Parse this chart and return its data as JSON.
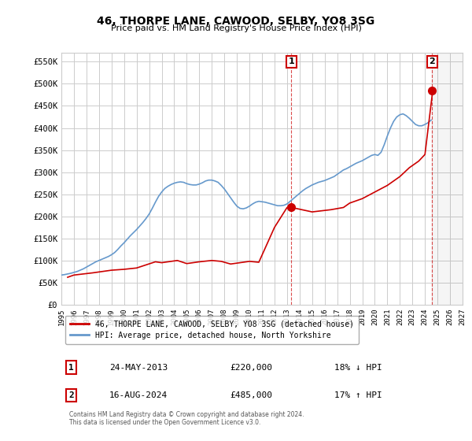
{
  "title": "46, THORPE LANE, CAWOOD, SELBY, YO8 3SG",
  "subtitle": "Price paid vs. HM Land Registry's House Price Index (HPI)",
  "ylabel_ticks": [
    "£0",
    "£50K",
    "£100K",
    "£150K",
    "£200K",
    "£250K",
    "£300K",
    "£350K",
    "£400K",
    "£450K",
    "£500K",
    "£550K"
  ],
  "ytick_values": [
    0,
    50000,
    100000,
    150000,
    200000,
    250000,
    300000,
    350000,
    400000,
    450000,
    500000,
    550000
  ],
  "ylim": [
    0,
    570000
  ],
  "background_color": "#ffffff",
  "grid_color": "#cccccc",
  "hpi_color": "#6699cc",
  "price_color": "#cc0000",
  "transaction1": {
    "date": "24-MAY-2013",
    "price": 220000,
    "label": "1",
    "hpi_diff": "18% ↓ HPI"
  },
  "transaction2": {
    "date": "16-AUG-2024",
    "price": 485000,
    "label": "2",
    "hpi_diff": "17% ↑ HPI"
  },
  "legend_property": "46, THORPE LANE, CAWOOD, SELBY, YO8 3SG (detached house)",
  "legend_hpi": "HPI: Average price, detached house, North Yorkshire",
  "footer": "Contains HM Land Registry data © Crown copyright and database right 2024.\nThis data is licensed under the Open Government Licence v3.0.",
  "hpi_data_x": [
    1995.0,
    1995.25,
    1995.5,
    1995.75,
    1996.0,
    1996.25,
    1996.5,
    1996.75,
    1997.0,
    1997.25,
    1997.5,
    1997.75,
    1998.0,
    1998.25,
    1998.5,
    1998.75,
    1999.0,
    1999.25,
    1999.5,
    1999.75,
    2000.0,
    2000.25,
    2000.5,
    2000.75,
    2001.0,
    2001.25,
    2001.5,
    2001.75,
    2002.0,
    2002.25,
    2002.5,
    2002.75,
    2003.0,
    2003.25,
    2003.5,
    2003.75,
    2004.0,
    2004.25,
    2004.5,
    2004.75,
    2005.0,
    2005.25,
    2005.5,
    2005.75,
    2006.0,
    2006.25,
    2006.5,
    2006.75,
    2007.0,
    2007.25,
    2007.5,
    2007.75,
    2008.0,
    2008.25,
    2008.5,
    2008.75,
    2009.0,
    2009.25,
    2009.5,
    2009.75,
    2010.0,
    2010.25,
    2010.5,
    2010.75,
    2011.0,
    2011.25,
    2011.5,
    2011.75,
    2012.0,
    2012.25,
    2012.5,
    2012.75,
    2013.0,
    2013.25,
    2013.5,
    2013.75,
    2014.0,
    2014.25,
    2014.5,
    2014.75,
    2015.0,
    2015.25,
    2015.5,
    2015.75,
    2016.0,
    2016.25,
    2016.5,
    2016.75,
    2017.0,
    2017.25,
    2017.5,
    2017.75,
    2018.0,
    2018.25,
    2018.5,
    2018.75,
    2019.0,
    2019.25,
    2019.5,
    2019.75,
    2020.0,
    2020.25,
    2020.5,
    2020.75,
    2021.0,
    2021.25,
    2021.5,
    2021.75,
    2022.0,
    2022.25,
    2022.5,
    2022.75,
    2023.0,
    2023.25,
    2023.5,
    2023.75,
    2024.0,
    2024.25,
    2024.5
  ],
  "hpi_data_y": [
    67000,
    68000,
    69500,
    71000,
    73000,
    75000,
    78000,
    81000,
    85000,
    89000,
    93000,
    97000,
    100000,
    103000,
    106000,
    109000,
    113000,
    118000,
    125000,
    133000,
    140000,
    148000,
    156000,
    163000,
    170000,
    178000,
    186000,
    195000,
    205000,
    218000,
    232000,
    245000,
    255000,
    263000,
    268000,
    272000,
    275000,
    277000,
    278000,
    277000,
    274000,
    272000,
    271000,
    271000,
    273000,
    276000,
    280000,
    282000,
    282000,
    280000,
    277000,
    270000,
    262000,
    252000,
    242000,
    232000,
    223000,
    218000,
    217000,
    219000,
    223000,
    228000,
    232000,
    234000,
    233000,
    232000,
    230000,
    228000,
    226000,
    224000,
    224000,
    225000,
    228000,
    234000,
    240000,
    246000,
    252000,
    258000,
    263000,
    267000,
    271000,
    274000,
    277000,
    279000,
    281000,
    284000,
    287000,
    290000,
    295000,
    300000,
    305000,
    308000,
    312000,
    316000,
    320000,
    323000,
    326000,
    330000,
    334000,
    338000,
    340000,
    338000,
    345000,
    362000,
    382000,
    400000,
    415000,
    425000,
    430000,
    432000,
    428000,
    422000,
    415000,
    408000,
    405000,
    405000,
    408000,
    412000,
    418000
  ],
  "price_data_x": [
    1995.5,
    1996.0,
    1997.5,
    1998.25,
    1999.0,
    2000.0,
    2001.0,
    2001.75,
    2002.5,
    2003.0,
    2004.25,
    2005.0,
    2006.0,
    2007.0,
    2007.75,
    2008.5,
    2010.0,
    2010.75,
    2012.0,
    2013.0,
    2013.37,
    2015.0,
    2016.5,
    2017.5,
    2018.0,
    2019.0,
    2020.0,
    2021.0,
    2022.0,
    2022.75,
    2023.5,
    2024.0,
    2024.62
  ],
  "price_data_y": [
    62000,
    67000,
    72000,
    75000,
    78000,
    80000,
    83000,
    90000,
    97000,
    95000,
    100000,
    93000,
    97000,
    100000,
    98000,
    92000,
    98000,
    96000,
    175000,
    220000,
    220000,
    210000,
    215000,
    220000,
    230000,
    240000,
    255000,
    270000,
    290000,
    310000,
    325000,
    340000,
    485000
  ],
  "xmin": 1995,
  "xmax": 2027
}
